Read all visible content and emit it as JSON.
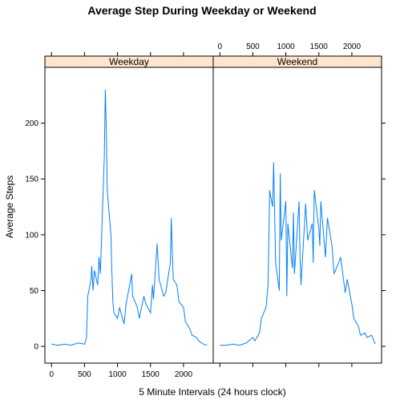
{
  "chart_data": {
    "type": "line",
    "title": "Average Step During Weekday or Weekend",
    "xlabel": "5 Minute Intervals (24 hours clock)",
    "ylabel": "Average Steps",
    "xlim": [
      -100,
      2450
    ],
    "ylim": [
      -15,
      250
    ],
    "x_ticks": [
      0,
      500,
      1000,
      1500,
      2000
    ],
    "y_ticks": [
      0,
      50,
      100,
      150,
      200
    ],
    "x_tick_labels": [
      "0",
      "500",
      "1000",
      "1500",
      "2000"
    ],
    "y_tick_labels": [
      "0",
      "50",
      "100",
      "150",
      "200"
    ],
    "grid": false,
    "line_color": "#0080ff",
    "strip_color": "#ffe5cc",
    "panels": [
      {
        "name": "Weekday",
        "x": [
          0,
          100,
          200,
          300,
          400,
          500,
          530,
          550,
          600,
          610,
          630,
          650,
          700,
          720,
          740,
          755,
          800,
          815,
          830,
          845,
          900,
          910,
          930,
          945,
          1000,
          1030,
          1100,
          1130,
          1200,
          1215,
          1230,
          1300,
          1330,
          1400,
          1430,
          1500,
          1530,
          1545,
          1600,
          1630,
          1700,
          1730,
          1800,
          1815,
          1830,
          1845,
          1900,
          1930,
          2000,
          2030,
          2100,
          2130,
          2200,
          2230,
          2300,
          2355
        ],
        "y": [
          2,
          1,
          2,
          1,
          3,
          2,
          8,
          45,
          60,
          72,
          50,
          68,
          55,
          80,
          65,
          90,
          170,
          230,
          195,
          140,
          100,
          75,
          40,
          30,
          25,
          35,
          20,
          38,
          60,
          65,
          45,
          35,
          25,
          45,
          38,
          30,
          55,
          42,
          92,
          60,
          45,
          48,
          75,
          115,
          85,
          60,
          55,
          40,
          35,
          22,
          15,
          10,
          8,
          5,
          2,
          1
        ]
      },
      {
        "name": "Weekend",
        "x": [
          0,
          100,
          200,
          300,
          400,
          500,
          530,
          600,
          630,
          700,
          730,
          755,
          800,
          815,
          845,
          900,
          915,
          930,
          1000,
          1015,
          1030,
          1100,
          1115,
          1130,
          1200,
          1215,
          1230,
          1300,
          1330,
          1400,
          1415,
          1430,
          1500,
          1515,
          1530,
          1600,
          1630,
          1700,
          1730,
          1800,
          1830,
          1900,
          1930,
          2000,
          2030,
          2100,
          2130,
          2200,
          2230,
          2300,
          2355
        ],
        "y": [
          1,
          1,
          2,
          1,
          3,
          8,
          5,
          12,
          25,
          35,
          55,
          140,
          125,
          165,
          75,
          50,
          155,
          95,
          130,
          45,
          110,
          70,
          120,
          65,
          130,
          80,
          55,
          128,
          95,
          110,
          75,
          140,
          105,
          90,
          130,
          80,
          115,
          90,
          65,
          75,
          80,
          48,
          60,
          38,
          25,
          18,
          10,
          12,
          8,
          10,
          2
        ]
      }
    ]
  }
}
